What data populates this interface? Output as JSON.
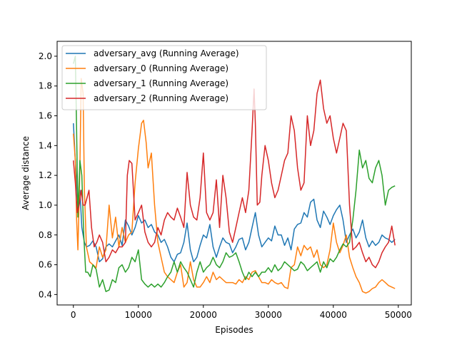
{
  "chart_data": {
    "type": "line",
    "title": "",
    "xlabel": "Episodes",
    "ylabel": "Average distance",
    "xlim": [
      -2500,
      52000
    ],
    "ylim": [
      0.33,
      2.1
    ],
    "xticks": [
      0,
      10000,
      20000,
      30000,
      40000,
      50000
    ],
    "xtick_labels": [
      "0",
      "10000",
      "20000",
      "30000",
      "40000",
      "50000"
    ],
    "yticks": [
      0.4,
      0.6,
      0.8,
      1.0,
      1.2,
      1.4,
      1.6,
      1.8,
      2.0
    ],
    "ytick_labels": [
      "0.4",
      "0.6",
      "0.8",
      "1.0",
      "1.2",
      "1.4",
      "1.6",
      "1.8",
      "2.0"
    ],
    "grid": false,
    "legend_position": "top-left",
    "series": [
      {
        "name": "adversary_avg (Running Average)",
        "color": "#1f77b4",
        "x": [
          0,
          300,
          700,
          1000,
          1300,
          1700,
          2000,
          2500,
          3000,
          3500,
          4000,
          4500,
          5000,
          5500,
          6000,
          6500,
          7000,
          7500,
          8000,
          8500,
          9000,
          9500,
          10000,
          10500,
          11000,
          11500,
          12000,
          12500,
          13000,
          13500,
          14000,
          14500,
          15000,
          15500,
          16000,
          16500,
          17000,
          17500,
          18000,
          18500,
          19000,
          19500,
          20000,
          20500,
          21000,
          21500,
          22000,
          22500,
          23000,
          23500,
          24000,
          24500,
          25000,
          25500,
          26000,
          26500,
          27000,
          27500,
          28000,
          28500,
          29000,
          29500,
          30000,
          30500,
          31000,
          31500,
          32000,
          32500,
          33000,
          33500,
          34000,
          34500,
          35000,
          35500,
          36000,
          36500,
          37000,
          37500,
          38000,
          38500,
          39000,
          39500,
          40000,
          40500,
          41000,
          41500,
          42000,
          42500,
          43000,
          43500,
          44000,
          44500,
          45000,
          45500,
          46000,
          46500,
          47000,
          47500,
          48000,
          48500,
          49000,
          49500
        ],
        "values": [
          1.55,
          1.3,
          1.0,
          1.1,
          0.85,
          0.75,
          0.72,
          0.73,
          0.76,
          0.72,
          0.62,
          0.64,
          0.72,
          0.74,
          0.72,
          0.76,
          0.8,
          0.73,
          0.9,
          0.86,
          0.8,
          0.85,
          0.93,
          0.88,
          0.9,
          0.85,
          0.87,
          0.82,
          0.8,
          0.75,
          0.77,
          0.72,
          0.65,
          0.62,
          0.67,
          0.68,
          0.75,
          0.88,
          0.7,
          0.62,
          0.65,
          0.73,
          0.8,
          0.78,
          0.87,
          0.72,
          0.65,
          0.72,
          0.78,
          0.75,
          0.74,
          0.68,
          0.72,
          0.77,
          0.78,
          0.7,
          0.75,
          0.85,
          0.95,
          0.8,
          0.72,
          0.75,
          0.78,
          0.76,
          0.86,
          0.8,
          0.8,
          0.73,
          0.78,
          0.7,
          0.84,
          0.87,
          0.88,
          0.95,
          0.92,
          1.02,
          1.04,
          0.9,
          0.85,
          0.96,
          0.92,
          0.87,
          0.93,
          0.97,
          1.0,
          0.9,
          0.75,
          0.8,
          0.84,
          0.78,
          0.82,
          0.9,
          0.78,
          0.72,
          0.76,
          0.73,
          0.75,
          0.8,
          0.78,
          0.77,
          0.75,
          0.77
        ]
      },
      {
        "name": "adversary_0 (Running Average)",
        "color": "#ff7f0e",
        "x": [
          0,
          300,
          500,
          700,
          1000,
          1200,
          1500,
          1700,
          2000,
          2500,
          3000,
          3500,
          4000,
          4500,
          5000,
          5500,
          6000,
          6500,
          7000,
          7500,
          8000,
          8500,
          9000,
          9500,
          10000,
          10500,
          10800,
          11200,
          11500,
          12000,
          12500,
          13000,
          13500,
          14000,
          14500,
          15000,
          15500,
          16000,
          16500,
          17000,
          17500,
          18000,
          18500,
          19000,
          19500,
          20000,
          20500,
          21000,
          21500,
          22000,
          22500,
          23000,
          23500,
          24000,
          24500,
          25000,
          25500,
          26000,
          26500,
          27000,
          27500,
          28000,
          28500,
          29000,
          29500,
          30000,
          30500,
          31000,
          31500,
          32000,
          32500,
          33000,
          33500,
          34000,
          34500,
          35000,
          35500,
          36000,
          36500,
          37000,
          37500,
          38000,
          38500,
          39000,
          39500,
          40000,
          40500,
          41000,
          41500,
          42000,
          42500,
          43000,
          43500,
          44000,
          44500,
          45000,
          45500,
          46000,
          46500,
          47000,
          47500,
          48000,
          48500,
          49000,
          49500
        ],
        "values": [
          1.48,
          1.3,
          0.9,
          0.7,
          1.25,
          1.85,
          1.75,
          1.1,
          0.72,
          0.62,
          0.6,
          0.58,
          0.72,
          0.65,
          0.7,
          1.0,
          0.78,
          0.92,
          0.72,
          0.85,
          0.75,
          0.8,
          0.82,
          1.15,
          1.38,
          1.55,
          1.57,
          1.42,
          1.25,
          1.35,
          1.0,
          0.75,
          0.65,
          0.55,
          0.52,
          0.5,
          0.48,
          0.55,
          0.6,
          0.45,
          0.48,
          0.62,
          0.5,
          0.45,
          0.45,
          0.48,
          0.52,
          0.48,
          0.55,
          0.5,
          0.52,
          0.5,
          0.48,
          0.48,
          0.48,
          0.47,
          0.5,
          0.48,
          0.52,
          0.5,
          0.55,
          0.56,
          0.52,
          0.48,
          0.48,
          0.47,
          0.5,
          0.48,
          0.47,
          0.48,
          0.45,
          0.44,
          0.58,
          0.6,
          0.72,
          0.66,
          0.73,
          0.7,
          0.72,
          0.65,
          0.7,
          0.6,
          0.58,
          0.6,
          0.7,
          0.88,
          0.75,
          0.68,
          0.73,
          0.8,
          0.65,
          0.58,
          0.52,
          0.48,
          0.42,
          0.41,
          0.42,
          0.44,
          0.45,
          0.48,
          0.5,
          0.48,
          0.46,
          0.45,
          0.44
        ]
      },
      {
        "name": "adversary_1 (Running Average)",
        "color": "#2ca02c",
        "x": [
          0,
          300,
          500,
          700,
          1000,
          1300,
          1600,
          1900,
          2200,
          2600,
          3000,
          3500,
          4000,
          4500,
          5000,
          5500,
          6000,
          6500,
          7000,
          7500,
          8000,
          8500,
          9000,
          9500,
          10000,
          10500,
          11000,
          11500,
          12000,
          12500,
          13000,
          13500,
          14000,
          14500,
          15000,
          15500,
          16000,
          16500,
          17000,
          17500,
          18000,
          18500,
          19000,
          19500,
          20000,
          20500,
          21000,
          21500,
          22000,
          22500,
          23000,
          23500,
          24000,
          24500,
          25000,
          25500,
          26000,
          26500,
          27000,
          27500,
          28000,
          28500,
          29000,
          29500,
          30000,
          30500,
          31000,
          31500,
          32000,
          32500,
          33000,
          33500,
          34000,
          34500,
          35000,
          35500,
          36000,
          36500,
          37000,
          37500,
          38000,
          38500,
          39000,
          39500,
          40000,
          40500,
          41000,
          41500,
          42000,
          42500,
          43000,
          43500,
          44000,
          44500,
          45000,
          45500,
          46000,
          46500,
          47000,
          47500,
          48000,
          48500,
          49000,
          49500
        ],
        "values": [
          1.95,
          2.0,
          1.5,
          0.92,
          1.3,
          1.2,
          0.8,
          0.55,
          0.55,
          0.52,
          0.6,
          0.57,
          0.45,
          0.5,
          0.42,
          0.43,
          0.5,
          0.48,
          0.58,
          0.6,
          0.55,
          0.58,
          0.65,
          0.62,
          0.7,
          0.5,
          0.47,
          0.45,
          0.47,
          0.45,
          0.47,
          0.45,
          0.48,
          0.52,
          0.55,
          0.62,
          0.55,
          0.62,
          0.58,
          0.55,
          0.5,
          0.45,
          0.55,
          0.62,
          0.55,
          0.58,
          0.6,
          0.65,
          0.6,
          0.58,
          0.62,
          0.68,
          0.65,
          0.66,
          0.68,
          0.62,
          0.55,
          0.5,
          0.55,
          0.52,
          0.55,
          0.52,
          0.55,
          0.55,
          0.58,
          0.55,
          0.6,
          0.56,
          0.58,
          0.62,
          0.6,
          0.58,
          0.56,
          0.57,
          0.62,
          0.6,
          0.56,
          0.58,
          0.6,
          0.62,
          0.55,
          0.62,
          0.58,
          0.64,
          0.62,
          0.65,
          0.7,
          0.74,
          0.72,
          0.75,
          0.9,
          1.1,
          1.37,
          1.25,
          1.3,
          1.18,
          1.15,
          1.25,
          1.3,
          1.2,
          1.0,
          1.1,
          1.12,
          1.13
        ]
      },
      {
        "name": "adversary_2 (Running Average)",
        "color": "#d62728",
        "x": [
          0,
          300,
          600,
          900,
          1200,
          1500,
          1800,
          2100,
          2400,
          2800,
          3200,
          3600,
          4000,
          4500,
          5000,
          5500,
          6000,
          6500,
          7000,
          7500,
          8000,
          8300,
          8600,
          9000,
          9500,
          10000,
          10500,
          11000,
          11500,
          12000,
          12500,
          13000,
          13500,
          14000,
          14500,
          15000,
          15500,
          16000,
          16500,
          17000,
          17500,
          18000,
          18500,
          19000,
          19500,
          20000,
          20500,
          21000,
          21500,
          22000,
          22500,
          23000,
          23500,
          24000,
          24500,
          25000,
          25500,
          26000,
          26500,
          27000,
          27500,
          27800,
          28000,
          28300,
          28700,
          29000,
          29500,
          30000,
          30500,
          31000,
          31500,
          32000,
          32500,
          33000,
          33500,
          34000,
          34500,
          35000,
          35500,
          36000,
          36500,
          37000,
          37500,
          38000,
          38500,
          39000,
          39500,
          40000,
          40500,
          41000,
          41500,
          42000,
          42500,
          43000,
          43500,
          44000,
          44500,
          45000,
          45500,
          46000,
          46500,
          47000,
          47500,
          48000,
          48500,
          49000,
          49500
        ],
        "values": [
          1.3,
          1.15,
          0.95,
          1.0,
          1.1,
          1.0,
          1.0,
          1.05,
          1.1,
          0.85,
          0.72,
          0.75,
          0.8,
          0.75,
          0.62,
          0.65,
          0.7,
          0.68,
          0.72,
          0.72,
          0.75,
          1.2,
          1.3,
          1.28,
          0.9,
          0.95,
          1.0,
          0.82,
          0.75,
          0.72,
          0.75,
          0.85,
          0.8,
          0.9,
          0.95,
          0.92,
          0.9,
          0.98,
          0.92,
          0.85,
          1.22,
          1.0,
          0.92,
          0.9,
          1.05,
          1.35,
          0.95,
          0.9,
          0.95,
          1.17,
          0.85,
          1.2,
          1.05,
          0.82,
          0.75,
          0.85,
          0.95,
          1.05,
          0.95,
          1.1,
          1.5,
          1.78,
          1.55,
          1.0,
          1.02,
          1.2,
          1.4,
          1.3,
          1.15,
          1.05,
          1.1,
          1.2,
          1.3,
          1.35,
          1.6,
          1.5,
          1.25,
          1.1,
          1.15,
          1.6,
          1.4,
          1.5,
          1.75,
          1.84,
          1.65,
          1.55,
          1.6,
          1.45,
          1.35,
          1.45,
          1.55,
          1.5,
          1.0,
          0.7,
          0.72,
          0.75,
          0.68,
          0.62,
          0.65,
          0.6,
          0.58,
          0.62,
          0.68,
          0.72,
          0.75,
          0.86,
          0.73
        ]
      }
    ]
  }
}
